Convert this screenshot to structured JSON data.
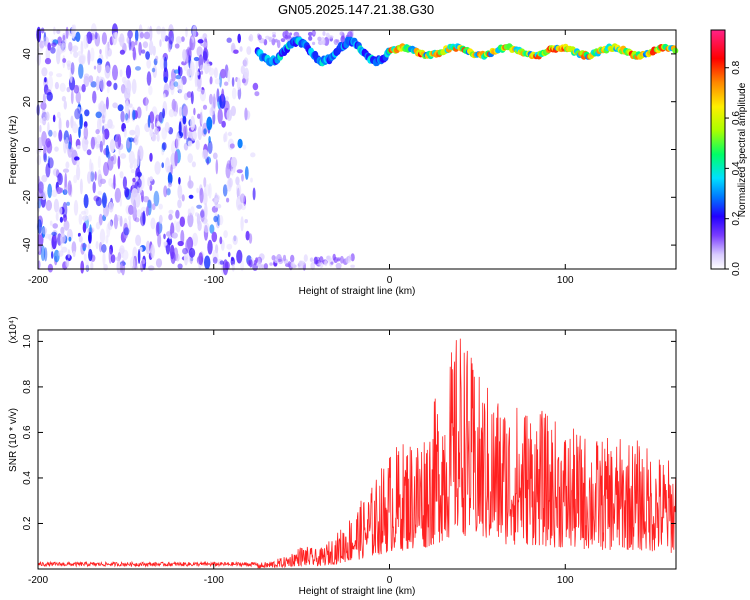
{
  "title": "GN05.2025.147.21.38.G30",
  "chart_data": [
    {
      "type": "heatmap",
      "xlabel": "Height of straight line (km)",
      "ylabel": "Frequency (Hz)",
      "xlim": [
        -200,
        163
      ],
      "ylim": [
        -50,
        50
      ],
      "x_ticks": [
        -200,
        -100,
        0,
        100
      ],
      "y_ticks": [
        -40,
        -20,
        0,
        20,
        40
      ],
      "colorbar": {
        "label": "Normalized spectral amplitude",
        "range": [
          0.0,
          0.95
        ],
        "ticks": [
          0.0,
          0.2,
          0.4,
          0.6,
          0.8
        ],
        "colormap": [
          "#ffffff",
          "#d9ccff",
          "#7a3dff",
          "#2200ff",
          "#0077ff",
          "#00e0ff",
          "#00ff66",
          "#aaff00",
          "#ffee00",
          "#ff8800",
          "#ff0000",
          "#ff2288"
        ]
      },
      "features": [
        {
          "label": "narrowband line",
          "freq_hz": 41,
          "x_range": [
            -75,
            163
          ],
          "amplitude": 0.8
        },
        {
          "label": "broadband noise",
          "x_range": [
            -200,
            -72
          ],
          "freq_range": [
            -50,
            50
          ],
          "amplitude": 0.15
        }
      ]
    },
    {
      "type": "line",
      "xlabel": "Height of straight line (km)",
      "ylabel": "SNR (10 * v/v)",
      "y_multiplier": "(x10⁴)",
      "xlim": [
        -200,
        163
      ],
      "ylim": [
        0,
        1.05
      ],
      "x_ticks": [
        -200,
        -100,
        0,
        100
      ],
      "y_ticks": [
        0.2,
        0.4,
        0.6,
        0.8,
        1.0
      ],
      "color": "#ff2020",
      "envelope": {
        "x": [
          -200,
          -80,
          -70,
          -60,
          -50,
          -40,
          -30,
          -20,
          -10,
          0,
          10,
          20,
          30,
          40,
          50,
          60,
          70,
          80,
          100,
          120,
          140,
          150,
          163
        ],
        "y": [
          0.02,
          0.02,
          0.03,
          0.05,
          0.1,
          0.08,
          0.15,
          0.25,
          0.35,
          0.5,
          0.55,
          0.6,
          0.8,
          1.03,
          0.82,
          0.75,
          0.7,
          0.7,
          0.6,
          0.55,
          0.55,
          0.5,
          0.45
        ]
      }
    }
  ]
}
